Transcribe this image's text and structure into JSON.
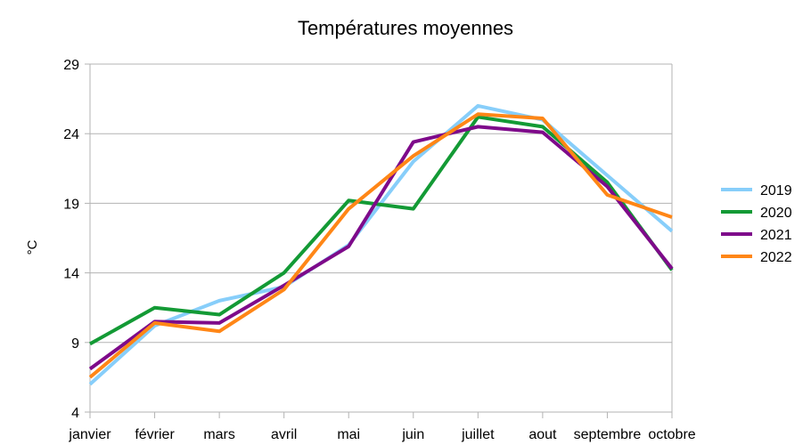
{
  "chart_data": {
    "type": "line",
    "title": "Températures moyennes",
    "xlabel": "",
    "ylabel": "°C",
    "ylim": [
      4,
      29
    ],
    "yticks": [
      4,
      9,
      14,
      19,
      24,
      29
    ],
    "grid": true,
    "legend_position": "right",
    "categories": [
      "janvier",
      "février",
      "mars",
      "avril",
      "mai",
      "juin",
      "juillet",
      "aout",
      "septembre",
      "octobre"
    ],
    "series": [
      {
        "name": "2019",
        "color": "#87CEFA",
        "values": [
          6.0,
          10.2,
          12.0,
          13.0,
          16.0,
          22.0,
          26.0,
          25.0,
          21.0,
          17.0
        ]
      },
      {
        "name": "2020",
        "color": "#139A35",
        "values": [
          8.9,
          11.5,
          11.0,
          14.0,
          19.2,
          18.6,
          25.2,
          24.5,
          20.5,
          14.2
        ]
      },
      {
        "name": "2021",
        "color": "#7E0A8A",
        "values": [
          7.1,
          10.5,
          10.4,
          13.1,
          15.9,
          23.4,
          24.5,
          24.1,
          20.2,
          14.3
        ]
      },
      {
        "name": "2022",
        "color": "#FF8616",
        "values": [
          6.5,
          10.4,
          9.8,
          12.8,
          18.6,
          22.4,
          25.4,
          25.1,
          19.6,
          18.0
        ]
      }
    ]
  }
}
